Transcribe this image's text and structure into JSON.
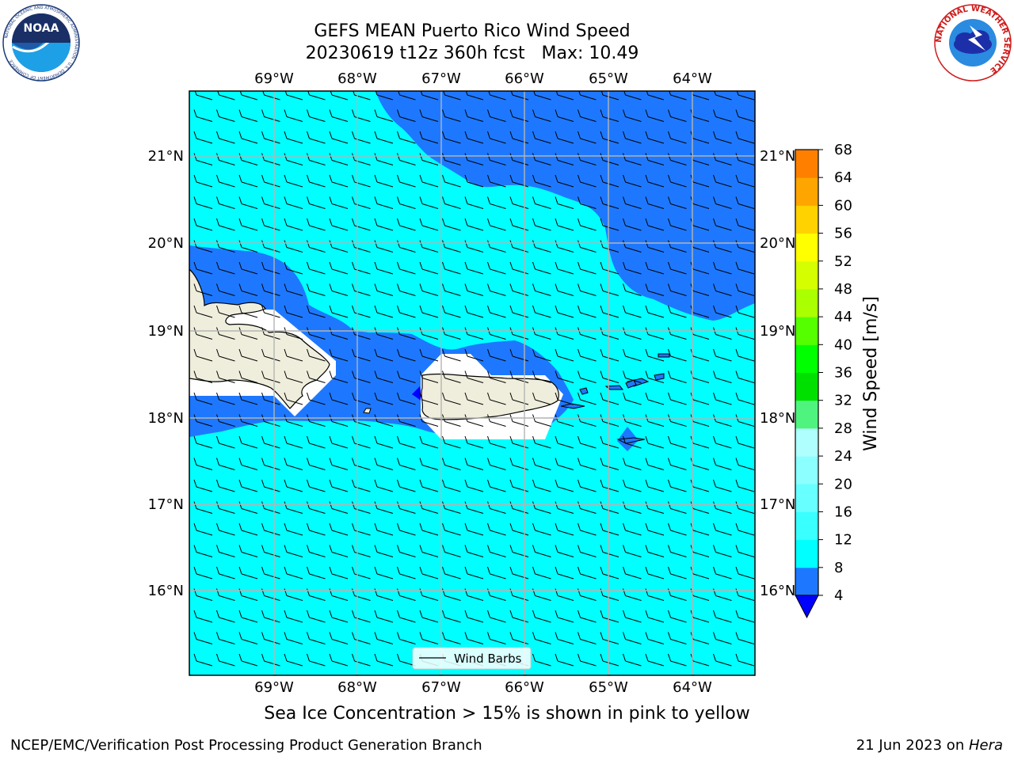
{
  "title": {
    "line1": "GEFS MEAN Puerto Rico Wind Speed",
    "line2": "20230619 t12z 360h fcst   Max: 10.49"
  },
  "map": {
    "lon_labels": [
      "69°W",
      "68°W",
      "67°W",
      "66°W",
      "65°W",
      "64°W"
    ],
    "lat_labels": [
      "21°N",
      "20°N",
      "19°N",
      "18°N",
      "17°N",
      "16°N"
    ],
    "legend_label": "Wind Barbs",
    "colors": {
      "band_4_8": "#1e78ff",
      "band_8_12": "#00ffff",
      "land": "#efeedc",
      "grid": "#b4b4b4"
    }
  },
  "colorbar": {
    "label": "Wind Speed [m/s]",
    "ticks": [
      "4",
      "8",
      "12",
      "16",
      "20",
      "24",
      "28",
      "32",
      "36",
      "40",
      "44",
      "48",
      "52",
      "56",
      "60",
      "64",
      "68"
    ],
    "colors": [
      "#1e78ff",
      "#00ffff",
      "#39ffff",
      "#67ffff",
      "#8cffff",
      "#b0ffff",
      "#4ff47f",
      "#00e000",
      "#00ff00",
      "#55ff00",
      "#aaff00",
      "#d5ff00",
      "#ffff00",
      "#ffd200",
      "#ffa500",
      "#ff8000",
      "#ff5000",
      "#ff3000",
      "#ff0000"
    ],
    "under_color": "#0000ff"
  },
  "caption": "Sea Ice Concentration > 15% is shown in pink to yellow",
  "footer": {
    "left": "NCEP/EMC/Verification Post Processing Product Generation Branch",
    "right_date": "21 Jun 2023 on ",
    "right_host": "Hera"
  },
  "logos": {
    "noaa": "NOAA",
    "nws_ring": "NATIONAL WEATHER SERVICE",
    "noaa_ring": "NATIONAL OCEANIC AND ATMOSPHERIC ADMINISTRATION · U.S. DEPARTMENT OF COMMERCE"
  }
}
